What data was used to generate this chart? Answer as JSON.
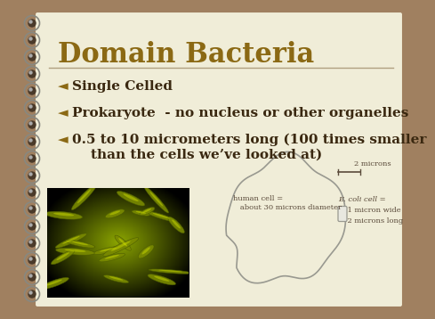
{
  "title": "Domain Bacteria",
  "title_color": "#8B6914",
  "bullet_color": "#8B6914",
  "bullet_symbol": "◄",
  "bullets": [
    "Single Celled",
    "Prokaryote  - no nucleus or other organelles",
    "0.5 to 10 micrometers long (100 times smaller\n    than the cells we’ve looked at)"
  ],
  "bg_outer": "#A08060",
  "bg_inner": "#F0EDD8",
  "line_color": "#B0A080",
  "spiral_dot_color": "#4a3a2a",
  "spiral_ring_color": "#888880",
  "text_color": "#3a2810",
  "diagram_cell_outline": "#999990",
  "annotation_color": "#5a4a3a",
  "label_human": "human cell =\n   about 30 microns diameter",
  "label_2microns": "2 microns",
  "label_ecoli_line1": "E. coli cell =",
  "label_ecoli_line2": "    1 micron wide",
  "label_ecoli_line3": "    2 microns long",
  "font_family": "DejaVu Serif",
  "bacteria_bg_dark": "#5a6000",
  "bacteria_bg_mid": "#8a9400",
  "bacteria_highlight": "#c8d400"
}
